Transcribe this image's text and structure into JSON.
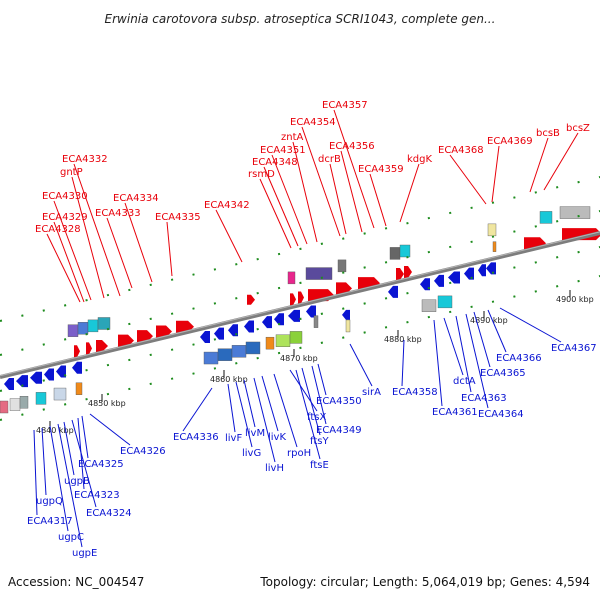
{
  "title": "Erwinia carotovora subsp. atroseptica SCRI1043, complete gen...",
  "footer": {
    "accession": "Accession: NC_004547",
    "summary": "Topology: circular; Length: 5,064,019 bp; Genes: 4,594"
  },
  "colors": {
    "upper_strand": "#e8000a",
    "lower_strand": "#0a14d2",
    "backbone": "#7d7d7d",
    "tick_green": "#1e8c1e"
  },
  "scale_ticks": [
    {
      "label": "4840 kbp",
      "kbp": 4840
    },
    {
      "label": "4850 kbp",
      "kbp": 4850
    },
    {
      "label": "4860 kbp",
      "kbp": 4860
    },
    {
      "label": "4870 kbp",
      "kbp": 4870
    },
    {
      "label": "4880 kbp",
      "kbp": 4880
    },
    {
      "label": "4890 kbp",
      "kbp": 4890
    },
    {
      "label": "4900 kbp",
      "kbp": 4900
    }
  ],
  "upper_genes": [
    "ECA4328",
    "ECA4329",
    "ECA4330",
    "gntP",
    "ECA4332",
    "ECA4333",
    "ECA4334",
    "ECA4335",
    "ECA4342",
    "rsmD",
    "ECA4348",
    "ECA4351",
    "zntA",
    "ECA4354",
    "ECA4357",
    "dcrB",
    "ECA4356",
    "ECA4359",
    "kdgK",
    "ECA4368",
    "ECA4369",
    "bcsB",
    "bcsZ"
  ],
  "lower_genes": [
    "ECA4317",
    "ugpQ",
    "ugpC",
    "ugpE",
    "ugpB",
    "ECA4324",
    "ECA4323",
    "ECA4325",
    "ECA4326",
    "ECA4336",
    "livF",
    "livG",
    "livM",
    "livH",
    "livK",
    "rpoH",
    "ftsX",
    "ftsE",
    "ftsY",
    "ECA4349",
    "ECA4350",
    "sirA",
    "ECA4358",
    "ECA4361",
    "dctA",
    "ECA4363",
    "ECA4364",
    "ECA4365",
    "ECA4366",
    "ECA4367"
  ]
}
